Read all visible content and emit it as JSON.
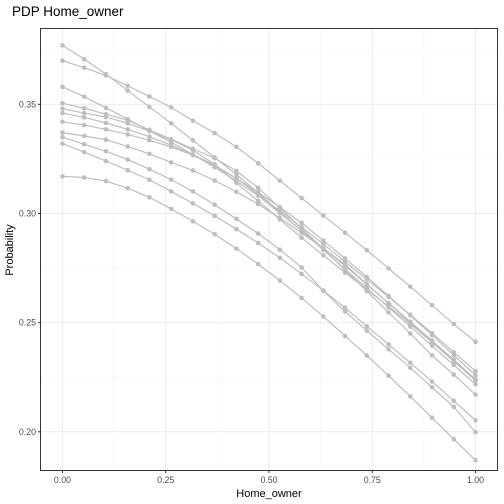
{
  "chart_data": {
    "type": "line",
    "title": "PDP Home_owner",
    "xlabel": "Home_owner",
    "ylabel": "Probability",
    "xlim": [
      -0.052,
      1.052
    ],
    "ylim": [
      0.1825,
      0.3845
    ],
    "x_ticks": [
      0.0,
      0.25,
      0.5,
      0.75,
      1.0
    ],
    "x_tick_labels": [
      "0.00",
      "0.25",
      "0.50",
      "0.75",
      "1.00"
    ],
    "y_ticks": [
      0.2,
      0.25,
      0.3,
      0.35
    ],
    "y_tick_labels": [
      "0.20",
      "0.25",
      "0.30",
      "0.35"
    ],
    "grid": true,
    "legend": "none",
    "line_color": "#bebebe",
    "x": [
      0.0,
      0.0526,
      0.1053,
      0.1579,
      0.2105,
      0.2632,
      0.3158,
      0.3684,
      0.4211,
      0.4737,
      0.5263,
      0.5789,
      0.6316,
      0.6842,
      0.7368,
      0.7895,
      0.8421,
      0.8947,
      0.9474,
      1.0
    ],
    "series": [
      {
        "values": [
          0.377,
          0.3707,
          0.3638,
          0.3563,
          0.3488,
          0.3413,
          0.3335,
          0.3257,
          0.3178,
          0.3095,
          0.3006,
          0.292,
          0.2833,
          0.2745,
          0.2658,
          0.257,
          0.2482,
          0.2394,
          0.2306,
          0.2218
        ]
      },
      {
        "values": [
          0.37,
          0.3668,
          0.3632,
          0.3585,
          0.3536,
          0.3486,
          0.3425,
          0.3368,
          0.3305,
          0.323,
          0.315,
          0.3071,
          0.299,
          0.2912,
          0.2832,
          0.2748,
          0.2665,
          0.258,
          0.2493,
          0.2412
        ]
      },
      {
        "values": [
          0.358,
          0.3535,
          0.3484,
          0.3432,
          0.3378,
          0.3326,
          0.327,
          0.3211,
          0.3148,
          0.3082,
          0.3001,
          0.2922,
          0.2841,
          0.276,
          0.2675,
          0.259,
          0.2504,
          0.2418,
          0.233,
          0.224
        ]
      },
      {
        "values": [
          0.3505,
          0.3482,
          0.3455,
          0.3427,
          0.3383,
          0.334,
          0.3296,
          0.3253,
          0.3195,
          0.3117,
          0.3026,
          0.2932,
          0.2837,
          0.2741,
          0.2644,
          0.2547,
          0.245,
          0.235,
          0.2262,
          0.217
        ]
      },
      {
        "values": [
          0.348,
          0.346,
          0.3442,
          0.3413,
          0.3377,
          0.3338,
          0.329,
          0.3225,
          0.314,
          0.3058,
          0.2973,
          0.2889,
          0.2808,
          0.2729,
          0.2651,
          0.2575,
          0.2494,
          0.241,
          0.2323,
          0.2239
        ]
      },
      {
        "values": [
          0.346,
          0.344,
          0.3415,
          0.3385,
          0.3352,
          0.3313,
          0.327,
          0.3222,
          0.3161,
          0.3087,
          0.3012,
          0.2937,
          0.286,
          0.2779,
          0.2698,
          0.2618,
          0.2536,
          0.2452,
          0.2364,
          0.2278
        ]
      },
      {
        "values": [
          0.342,
          0.3405,
          0.3385,
          0.3362,
          0.3335,
          0.3305,
          0.3267,
          0.3218,
          0.316,
          0.3097,
          0.3029,
          0.2957,
          0.2876,
          0.2794,
          0.2709,
          0.2622,
          0.2533,
          0.2443,
          0.2351,
          0.2259
        ]
      },
      {
        "values": [
          0.337,
          0.3355,
          0.3338,
          0.3307,
          0.3273,
          0.3234,
          0.3197,
          0.3151,
          0.3099,
          0.3043,
          0.2979,
          0.2911,
          0.284,
          0.2767,
          0.2677,
          0.2589,
          0.2501,
          0.2412,
          0.2323,
          0.2235
        ]
      },
      {
        "values": [
          0.332,
          0.3281,
          0.324,
          0.3198,
          0.3154,
          0.3101,
          0.3046,
          0.2989,
          0.2928,
          0.2865,
          0.2797,
          0.2723,
          0.2647,
          0.2568,
          0.2483,
          0.24,
          0.2316,
          0.223,
          0.2142,
          0.2053
        ]
      },
      {
        "values": [
          0.317,
          0.3165,
          0.3148,
          0.3116,
          0.3074,
          0.3021,
          0.2964,
          0.2905,
          0.2839,
          0.2768,
          0.2693,
          0.2613,
          0.2528,
          0.2439,
          0.2349,
          0.2257,
          0.2162,
          0.2064,
          0.1966,
          0.187
        ]
      },
      {
        "values": [
          0.335,
          0.3317,
          0.3285,
          0.3247,
          0.3203,
          0.3155,
          0.3101,
          0.304,
          0.2975,
          0.2908,
          0.2834,
          0.2753,
          0.2646,
          0.2551,
          0.2463,
          0.2378,
          0.2293,
          0.2204,
          0.2114,
          0.1998
        ]
      }
    ]
  }
}
